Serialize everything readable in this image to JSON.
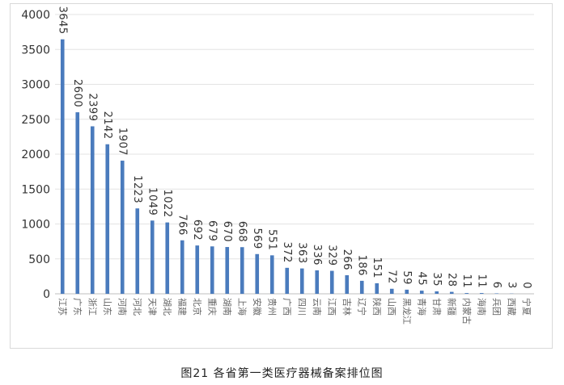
{
  "caption": "图21 各省第一类医疗器械备案排位图",
  "chart_data": {
    "type": "bar",
    "categories": [
      "江苏",
      "广东",
      "浙江",
      "山东",
      "河南",
      "河北",
      "天津",
      "湖北",
      "福建",
      "北京",
      "重庆",
      "湖南",
      "上海",
      "安徽",
      "贵州",
      "广西",
      "四川",
      "云南",
      "江西",
      "吉林",
      "辽宁",
      "陕西",
      "山西",
      "黑龙江",
      "青海",
      "甘肃",
      "新疆",
      "内蒙古",
      "海南",
      "兵团",
      "西藏",
      "宁夏"
    ],
    "values": [
      3645,
      2600,
      2399,
      2142,
      1907,
      1223,
      1049,
      1022,
      766,
      692,
      679,
      670,
      668,
      569,
      551,
      372,
      363,
      336,
      329,
      266,
      186,
      151,
      72,
      59,
      45,
      35,
      28,
      11,
      11,
      6,
      3,
      0
    ],
    "ylim": [
      0,
      4000
    ],
    "yticks": [
      0,
      500,
      1000,
      1500,
      2000,
      2500,
      3000,
      3500,
      4000
    ],
    "grid": true,
    "bar_color": "#4a7bbd",
    "title": "",
    "xlabel": "",
    "ylabel": ""
  }
}
